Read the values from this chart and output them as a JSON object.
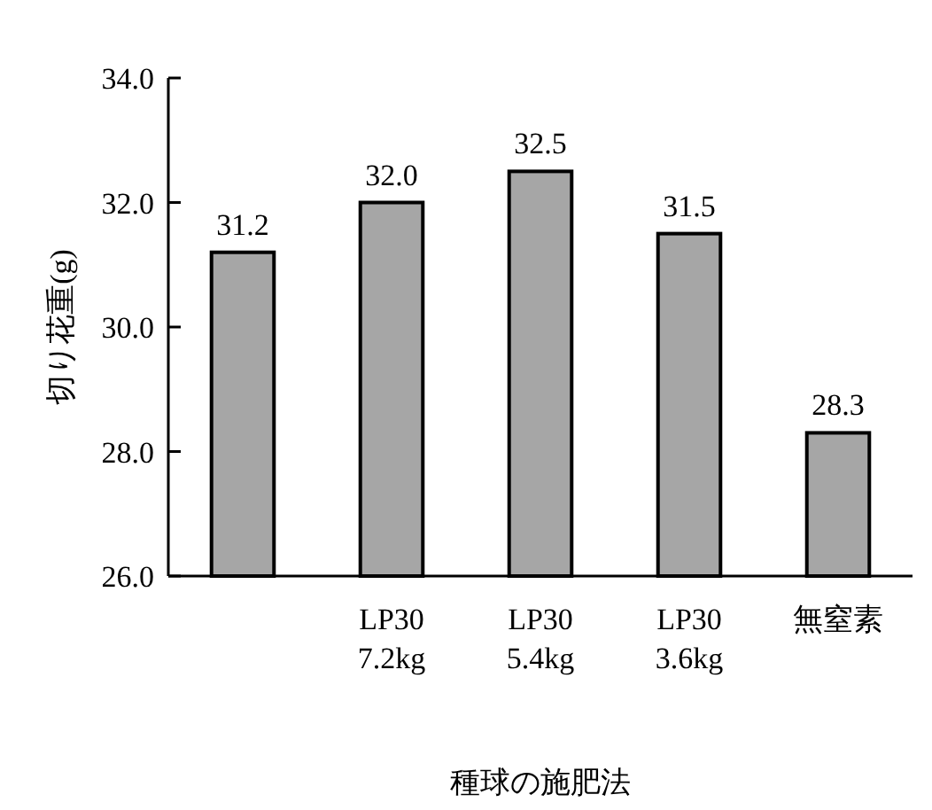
{
  "chart_data": {
    "type": "bar",
    "xlabel": "種球の施肥法",
    "ylabel": "切り花重(g)",
    "categories": [
      null,
      "LP30\n7.2kg",
      "LP30\n5.4kg",
      "LP30\n3.6kg",
      "無窒素"
    ],
    "values": [
      31.2,
      32.0,
      32.5,
      31.5,
      28.3
    ],
    "value_labels": [
      "31.2",
      "32.0",
      "32.5",
      "31.5",
      "28.3"
    ],
    "color": "#a6a6a6",
    "ylim": [
      26,
      34
    ],
    "yticks": [
      {
        "value": 26,
        "label": "26.0"
      },
      {
        "value": 28,
        "label": "28.0"
      },
      {
        "value": 30,
        "label": "30.0"
      },
      {
        "value": 32,
        "label": "32.0"
      },
      {
        "value": 34,
        "label": "34.0"
      }
    ],
    "grid": false
  }
}
